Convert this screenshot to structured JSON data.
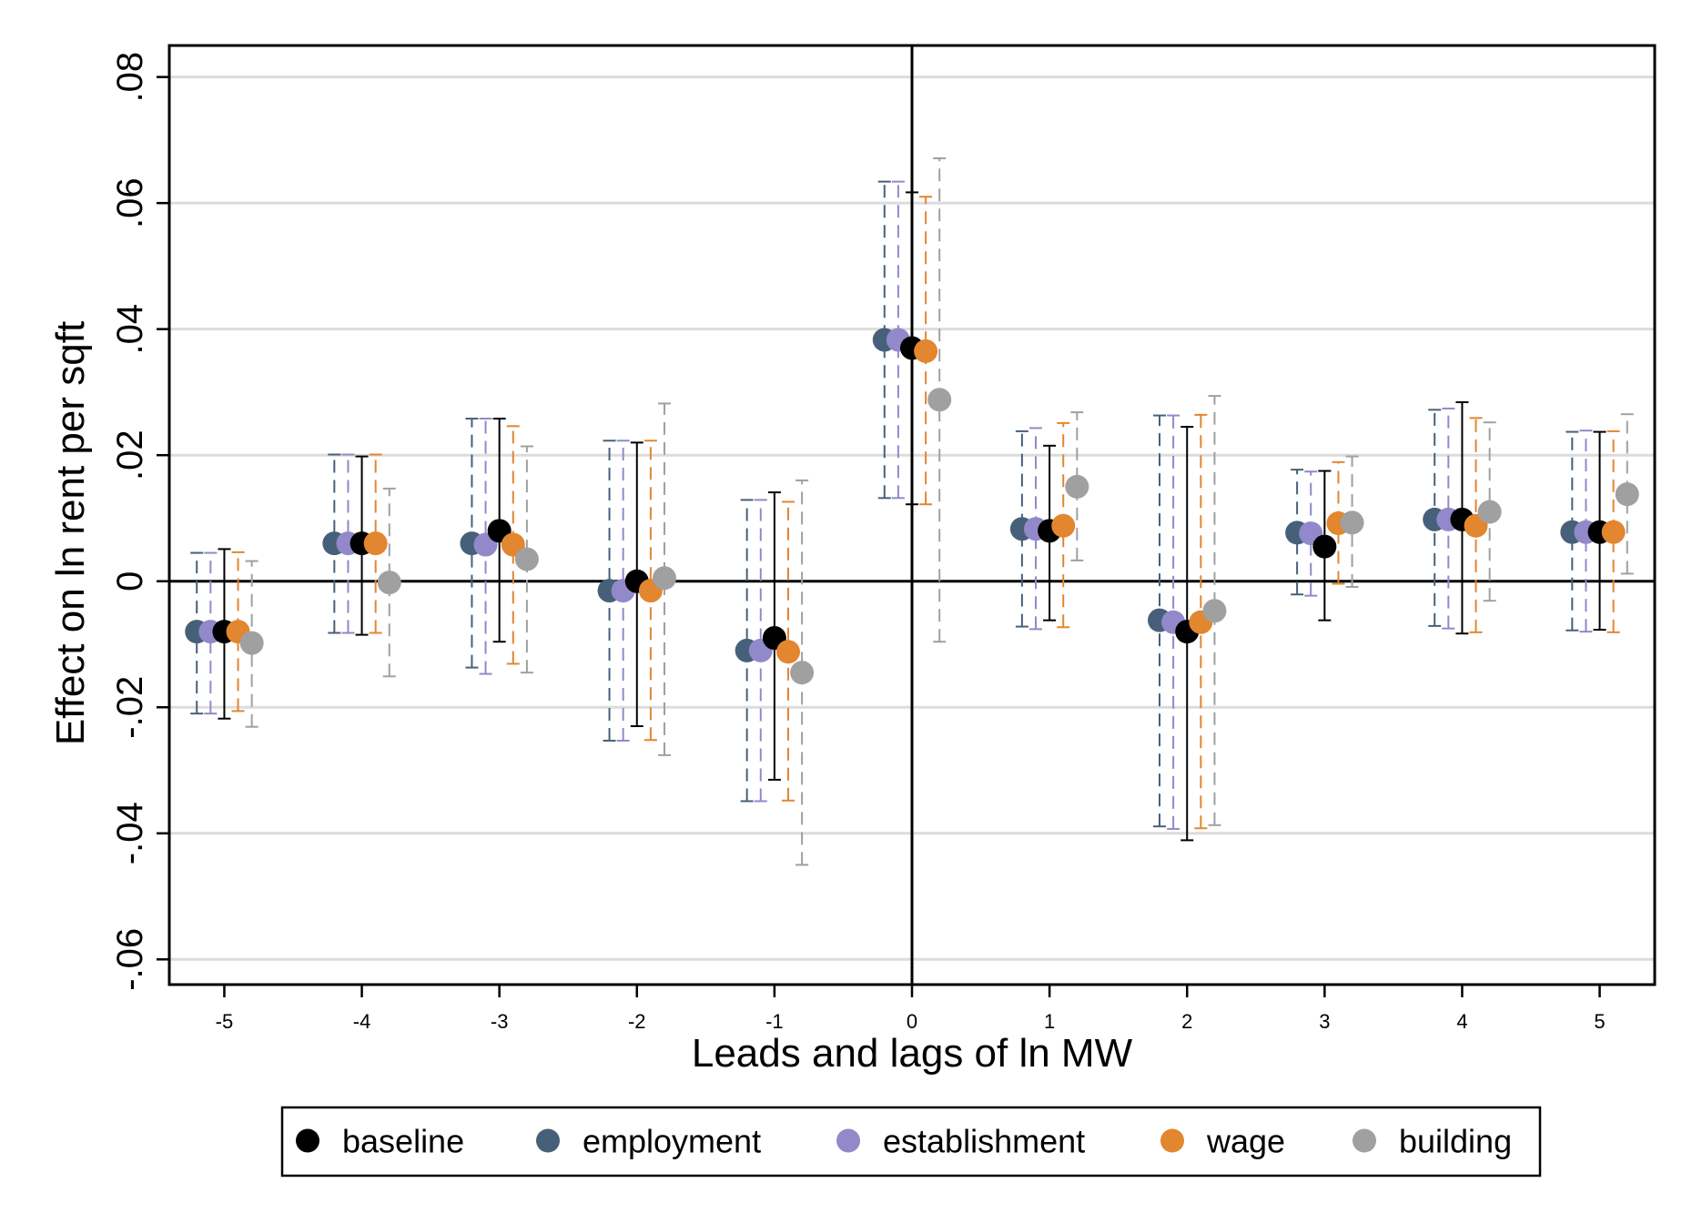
{
  "chart_data": {
    "type": "scatter",
    "xlabel": "Leads and lags of ln MW",
    "ylabel": "Effect on ln rent per sqft",
    "x": [
      -5,
      -4,
      -3,
      -2,
      -1,
      0,
      1,
      2,
      3,
      4,
      5
    ],
    "xlim": [
      -5.4,
      5.4
    ],
    "ylim": [
      -0.064,
      0.085
    ],
    "y_ticks": [
      -0.06,
      -0.04,
      -0.02,
      0,
      0.02,
      0.04,
      0.06,
      0.08
    ],
    "y_tick_labels": [
      "-.06",
      "-.04",
      "-.02",
      "0",
      ".02",
      ".04",
      ".06",
      ".08"
    ],
    "x_tick_labels": [
      "-5",
      "-4",
      "-3",
      "-2",
      "-1",
      "0",
      "1",
      "2",
      "3",
      "4",
      "5"
    ],
    "grid": true,
    "reference_lines": {
      "x": 0,
      "y": 0
    },
    "legend_position": "bottom",
    "series": [
      {
        "name": "baseline",
        "color": "#000000",
        "ci_style": "solid",
        "offset": 0.0,
        "values": [
          -0.008,
          0.006,
          0.008,
          0.0,
          -0.009,
          0.037,
          0.008,
          -0.008,
          0.0055,
          0.0098,
          0.0078
        ],
        "ci_low": [
          -0.0218,
          -0.0085,
          -0.0096,
          -0.023,
          -0.0315,
          0.0122,
          -0.0062,
          -0.0411,
          -0.0062,
          -0.0083,
          -0.0077
        ],
        "ci_high": [
          0.0051,
          0.0198,
          0.0258,
          0.022,
          0.0141,
          0.0617,
          0.0215,
          0.0245,
          0.0175,
          0.0284,
          0.0237
        ]
      },
      {
        "name": "employment",
        "color": "#47607A",
        "ci_style": "dashed",
        "offset": -0.2,
        "values": [
          -0.008,
          0.006,
          0.006,
          -0.0015,
          -0.011,
          0.0383,
          0.0083,
          -0.0062,
          0.0077,
          0.0098,
          0.0078
        ],
        "ci_low": [
          -0.021,
          -0.0082,
          -0.0137,
          -0.0253,
          -0.0349,
          0.0132,
          -0.0072,
          -0.0389,
          -0.0021,
          -0.0071,
          -0.0078
        ],
        "ci_high": [
          0.0045,
          0.0201,
          0.0258,
          0.0223,
          0.0129,
          0.0634,
          0.0238,
          0.0263,
          0.0177,
          0.0272,
          0.0237
        ]
      },
      {
        "name": "establishment",
        "color": "#9189CA",
        "ci_style": "dashed",
        "offset": -0.1,
        "values": [
          -0.008,
          0.006,
          0.0058,
          -0.0015,
          -0.011,
          0.0383,
          0.0083,
          -0.0065,
          0.0076,
          0.0098,
          0.0078
        ],
        "ci_low": [
          -0.021,
          -0.0082,
          -0.0147,
          -0.0253,
          -0.0349,
          0.0132,
          -0.0076,
          -0.0393,
          -0.0023,
          -0.0075,
          -0.008
        ],
        "ci_high": [
          0.0045,
          0.0201,
          0.0258,
          0.0223,
          0.0129,
          0.0634,
          0.0243,
          0.0263,
          0.0174,
          0.0274,
          0.0239
        ]
      },
      {
        "name": "wage",
        "color": "#E2862F",
        "ci_style": "dashed",
        "offset": 0.1,
        "values": [
          -0.008,
          0.006,
          0.0058,
          -0.0015,
          -0.0112,
          0.0365,
          0.0088,
          -0.0065,
          0.0092,
          0.0088,
          0.0078
        ],
        "ci_low": [
          -0.0206,
          -0.0082,
          -0.0131,
          -0.0252,
          -0.0348,
          0.0122,
          -0.0073,
          -0.0392,
          -0.0004,
          -0.0081,
          -0.0081
        ],
        "ci_high": [
          0.0046,
          0.0201,
          0.0246,
          0.0223,
          0.0126,
          0.061,
          0.0251,
          0.0264,
          0.0189,
          0.0259,
          0.0238
        ]
      },
      {
        "name": "building",
        "color": "#A0A0A0",
        "ci_style": "dashed",
        "offset": 0.2,
        "values": [
          -0.0098,
          -0.0002,
          0.0035,
          0.0005,
          -0.0145,
          0.0288,
          0.015,
          -0.0047,
          0.0093,
          0.011,
          0.0138
        ],
        "ci_low": [
          -0.0231,
          -0.0151,
          -0.0145,
          -0.0276,
          -0.045,
          -0.0096,
          0.0033,
          -0.0387,
          -0.0009,
          -0.0031,
          0.0012
        ],
        "ci_high": [
          0.0032,
          0.0147,
          0.0214,
          0.0282,
          0.016,
          0.0671,
          0.0268,
          0.0294,
          0.0198,
          0.0252,
          0.0265
        ]
      }
    ],
    "draw_order": [
      "employment",
      "establishment",
      "baseline",
      "wage",
      "building"
    ]
  }
}
